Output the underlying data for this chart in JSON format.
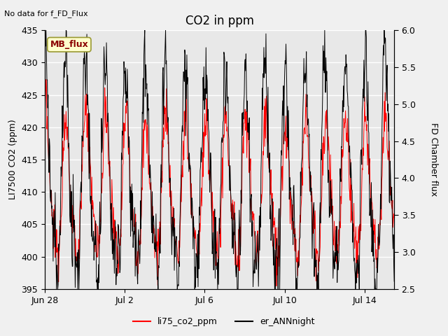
{
  "title": "CO2 in ppm",
  "top_left_text": "No data for f_FD_Flux",
  "ylabel_left": "LI7500 CO2 (ppm)",
  "ylabel_right": "FD Chamber flux",
  "ylim_left": [
    395,
    435
  ],
  "ylim_right": [
    2.5,
    6.0
  ],
  "yticks_left": [
    395,
    400,
    405,
    410,
    415,
    420,
    425,
    430,
    435
  ],
  "yticks_right": [
    2.5,
    3.0,
    3.5,
    4.0,
    4.5,
    5.0,
    5.5,
    6.0
  ],
  "xtick_labels": [
    "Jun 28",
    "Jul 2",
    "Jul 6",
    "Jul 10",
    "Jul 14"
  ],
  "legend_label_red": "li75_co2_ppm",
  "legend_label_black": "er_ANNnight",
  "annotation_box": "MB_flux",
  "line_color_red": "#ff0000",
  "line_color_black": "#000000",
  "background_color": "#f0f0f0",
  "plot_bg_color": "#e8e8e8",
  "grid_color": "#ffffff",
  "title_fontsize": 12,
  "label_fontsize": 9,
  "tick_fontsize": 9
}
